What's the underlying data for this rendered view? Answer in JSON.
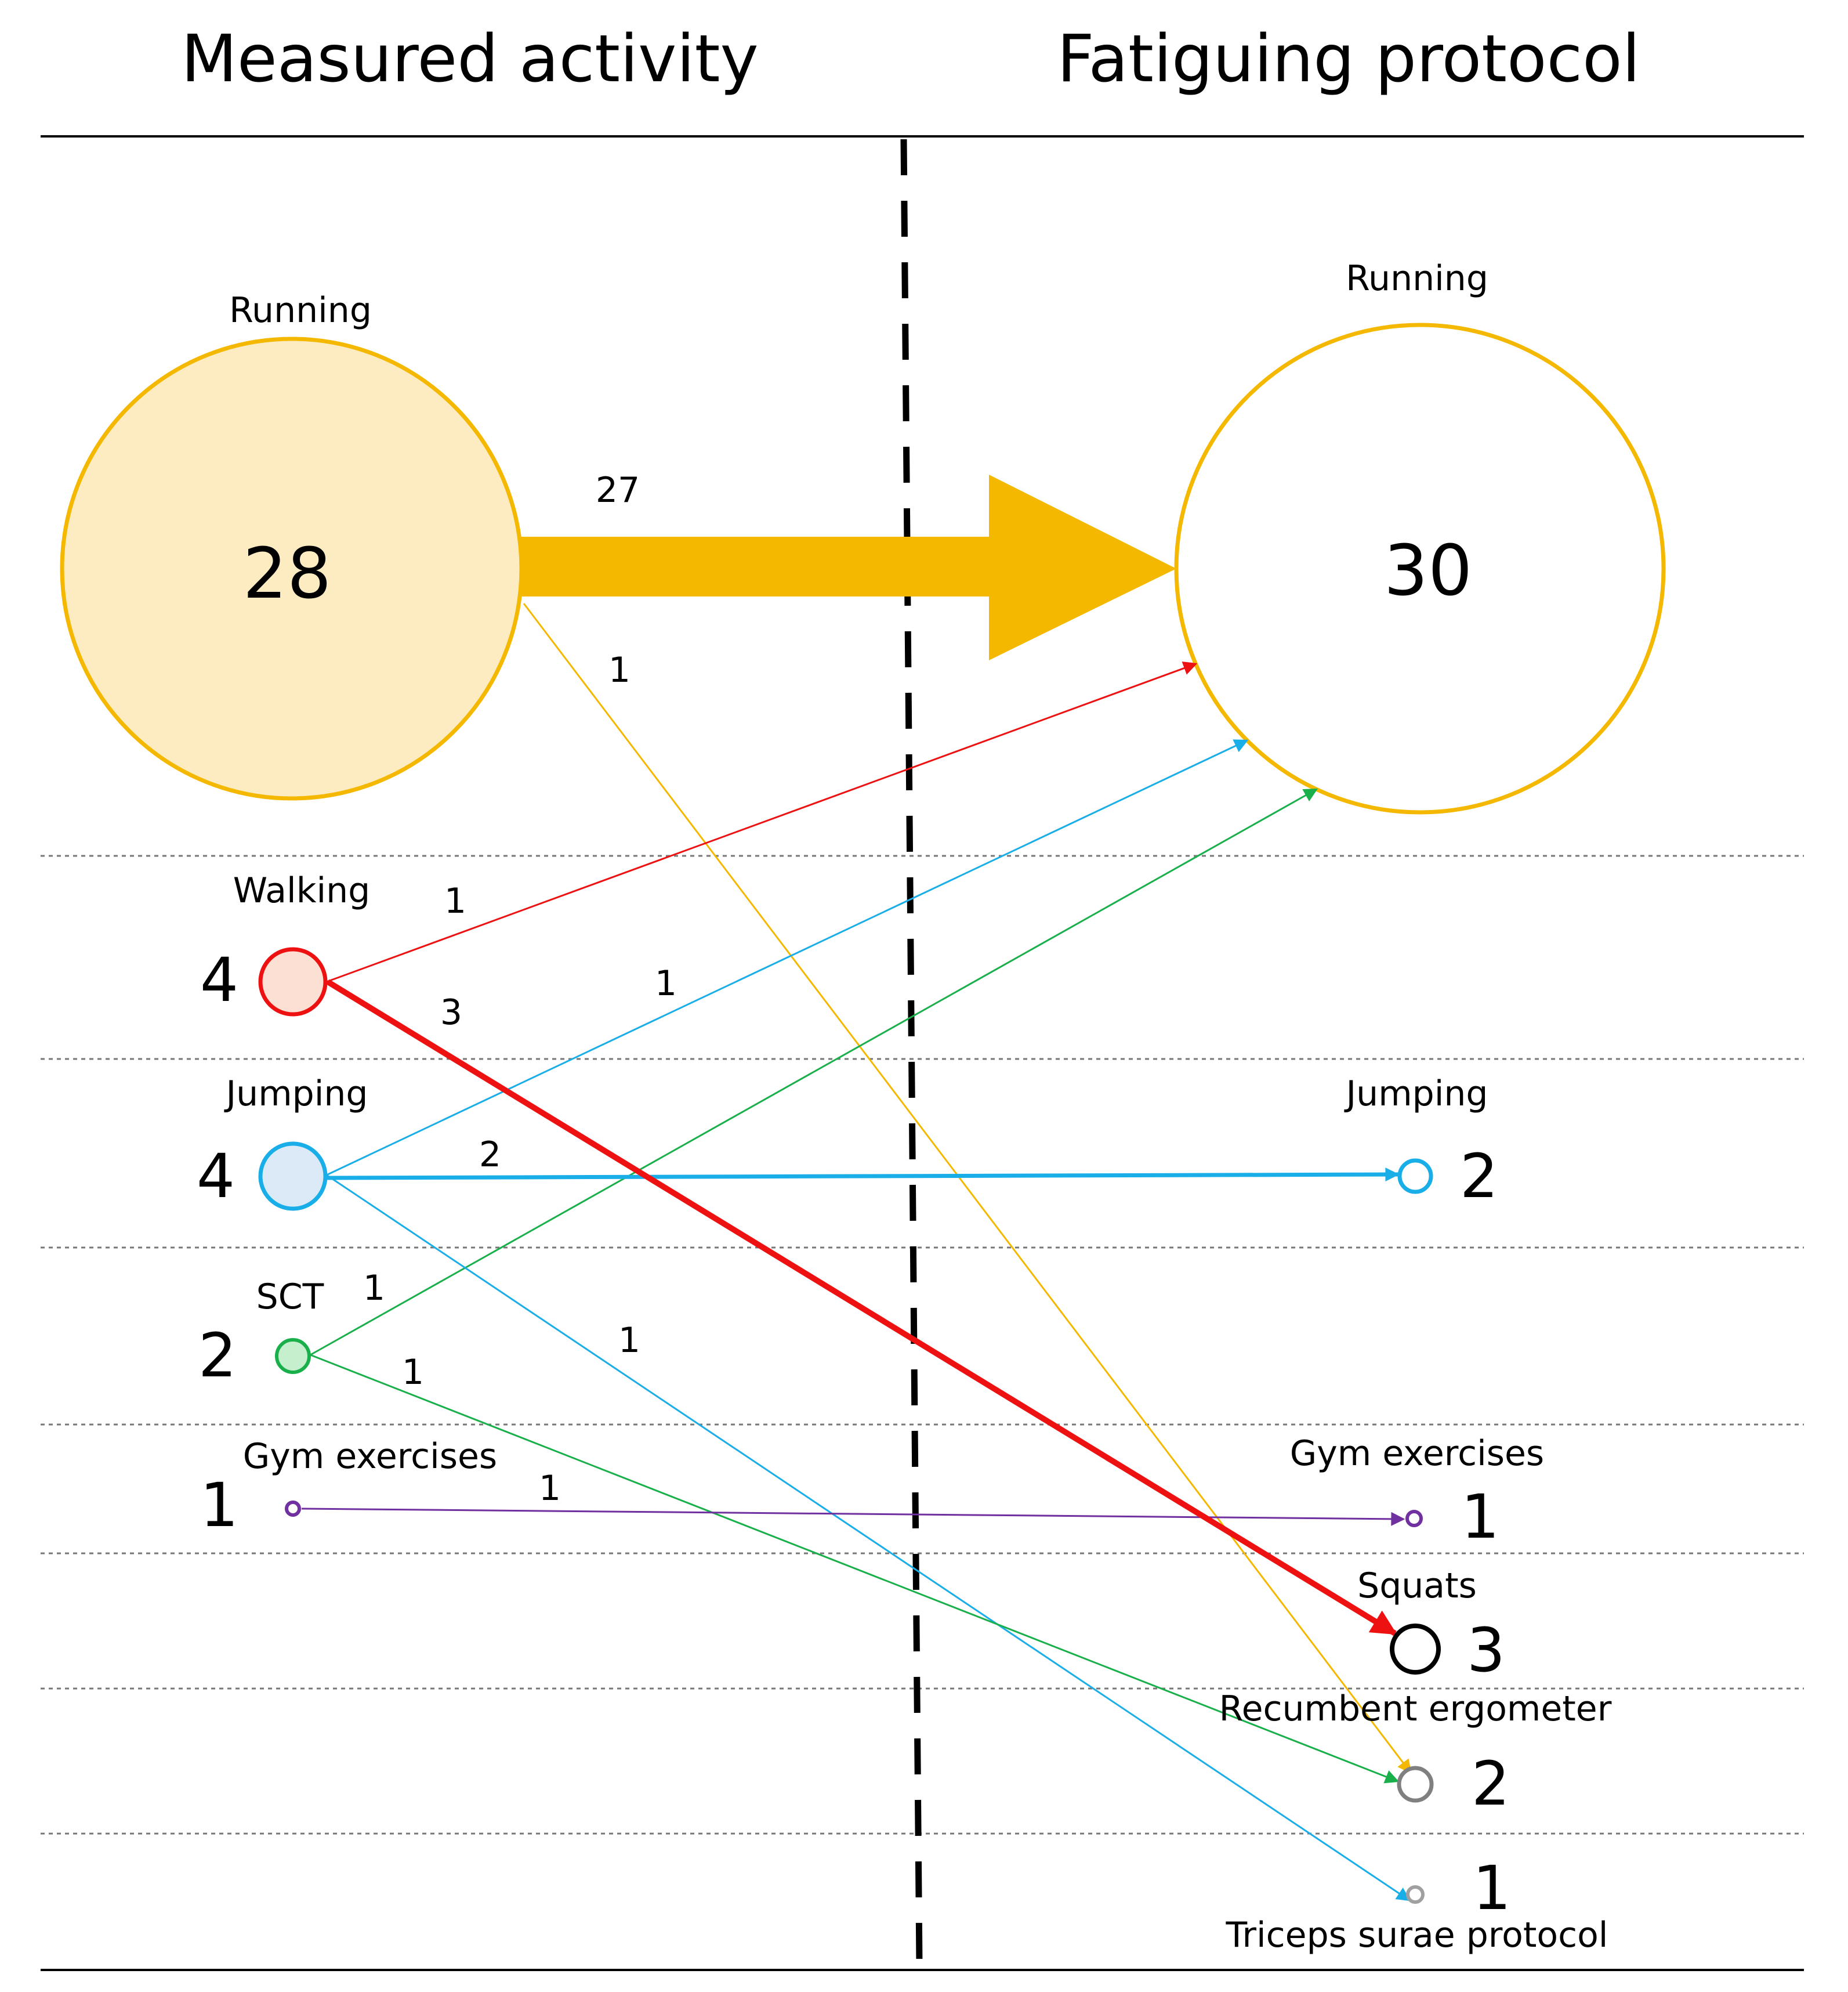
{
  "headers": {
    "left": "Measured activity",
    "right": "Fatiguing protocol"
  },
  "colors": {
    "running": "#F5B800",
    "running_fill": "#FDEBC1",
    "walking": "#EE1111",
    "walking_fill": "#FCE0D4",
    "jumping": "#1AAEE8",
    "jumping_fill": "#DCEAF7",
    "sct": "#19B04B",
    "sct_fill": "#C6EFCE",
    "gym": "#7030A0",
    "squats": "#000000",
    "ergometer": "#808080",
    "triceps": "#A0A0A0"
  },
  "left_nodes": {
    "running": {
      "label": "Running",
      "count": "28"
    },
    "walking": {
      "label": "Walking",
      "count": "4"
    },
    "jumping": {
      "label": "Jumping",
      "count": "4"
    },
    "sct": {
      "label": "SCT",
      "count": "2"
    },
    "gym": {
      "label": "Gym exercises",
      "count": "1"
    }
  },
  "right_nodes": {
    "running": {
      "label": "Running",
      "count": "30"
    },
    "jumping": {
      "label": "Jumping",
      "count": "2"
    },
    "gym": {
      "label": "Gym exercises",
      "count": "1"
    },
    "squats": {
      "label": "Squats",
      "count": "3"
    },
    "ergometer": {
      "label": "Recumbent ergometer",
      "count": "2"
    },
    "triceps": {
      "label": "Triceps surae protocol",
      "count": "1"
    }
  },
  "edges": {
    "running_running": "27",
    "running_ergometer": "1",
    "walking_running": "1",
    "walking_squats": "3",
    "jumping_running": "1",
    "jumping_jumping": "2",
    "jumping_triceps": "1",
    "sct_running": "1",
    "sct_ergometer": "1",
    "gym_gym": "1"
  }
}
